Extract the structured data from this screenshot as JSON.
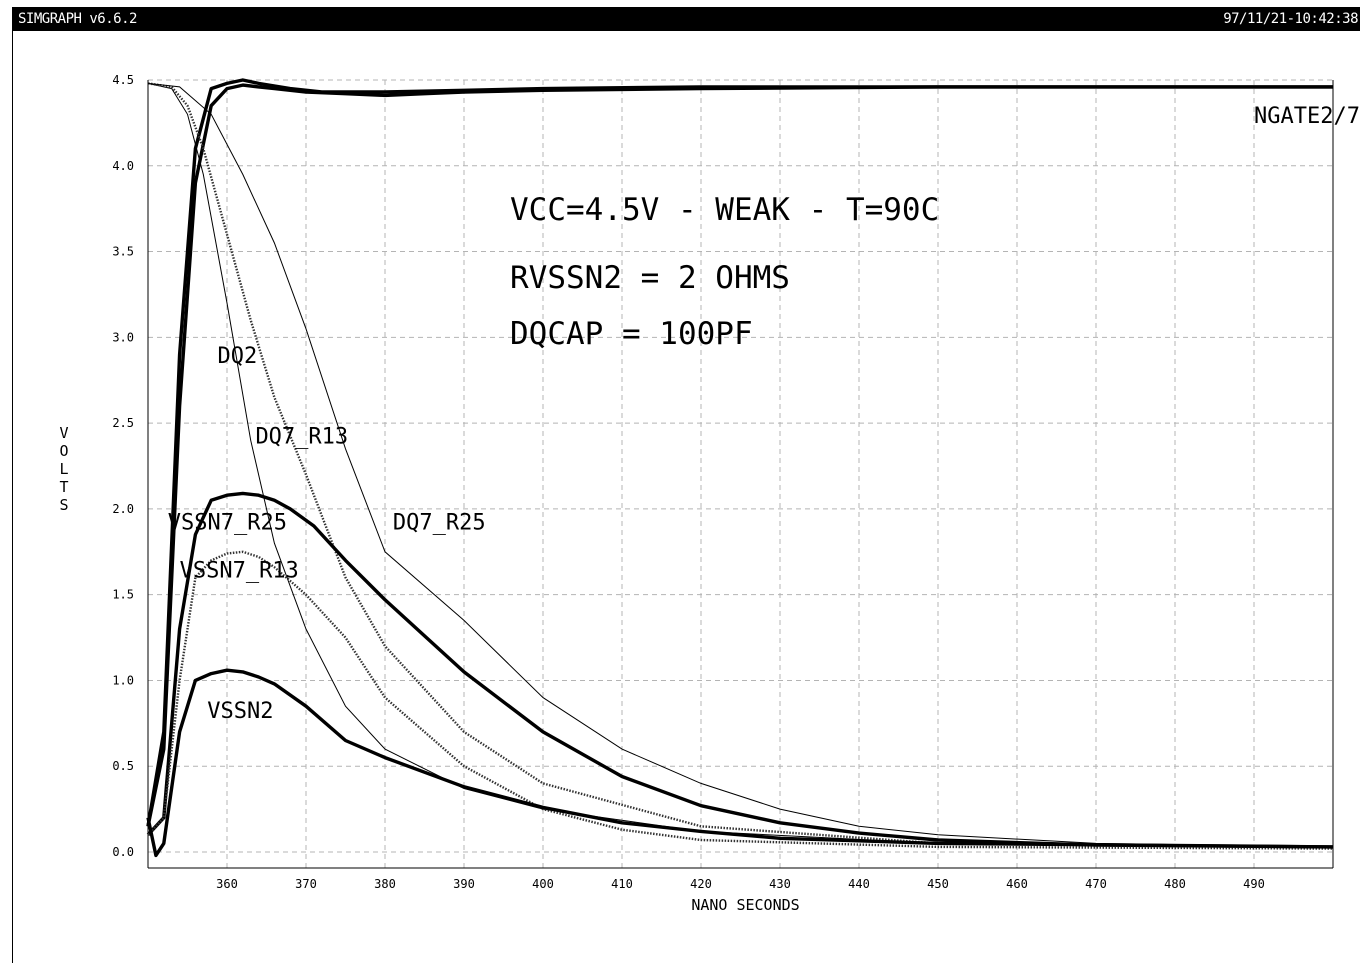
{
  "window": {
    "title": "SIMGRAPH v6.6.2",
    "timestamp": "97/11/21-10:42:38"
  },
  "chart_data": {
    "type": "line",
    "title": "",
    "xlabel": "NANO SECONDS",
    "ylabel": "VOLTS",
    "xlim": [
      350,
      500
    ],
    "ylim": [
      -0.05,
      4.5
    ],
    "xticks": [
      360,
      370,
      380,
      390,
      400,
      410,
      420,
      430,
      440,
      450,
      460,
      470,
      480,
      490
    ],
    "yticks": [
      0.0,
      0.5,
      1.0,
      1.5,
      2.0,
      2.5,
      3.0,
      3.5,
      4.0,
      4.5
    ],
    "grid": true,
    "annotations": [
      "VCC=4.5V - WEAK - T=90C",
      "RVSSN2 = 2 OHMS",
      "DQCAP = 100PF"
    ],
    "series": [
      {
        "name": "NGATE2/7",
        "style": "thick",
        "x": [
          350,
          352,
          354,
          356,
          358,
          360,
          362,
          364,
          366,
          370,
          375,
          380,
          385,
          390,
          400,
          420,
          450,
          480,
          500
        ],
        "y": [
          0.15,
          0.6,
          2.6,
          3.9,
          4.35,
          4.45,
          4.47,
          4.46,
          4.45,
          4.43,
          4.42,
          4.41,
          4.42,
          4.43,
          4.44,
          4.45,
          4.46,
          4.46,
          4.46
        ],
        "label_x": 490,
        "label_y": 4.25
      },
      {
        "name": "NGATE2/7",
        "style": "thick",
        "x": [
          350,
          352,
          354,
          356,
          358,
          360,
          362,
          364,
          368,
          372,
          380,
          390,
          400,
          420,
          450,
          480,
          500
        ],
        "y": [
          0.15,
          0.7,
          2.9,
          4.1,
          4.45,
          4.48,
          4.5,
          4.48,
          4.45,
          4.43,
          4.43,
          4.44,
          4.45,
          4.46,
          4.46,
          4.46,
          4.46
        ]
      },
      {
        "name": "DQ2",
        "style": "thin",
        "x": [
          350,
          353,
          355,
          357,
          360,
          363,
          366,
          370,
          375,
          380,
          390,
          400,
          420,
          450,
          500
        ],
        "y": [
          4.48,
          4.45,
          4.3,
          3.95,
          3.2,
          2.4,
          1.8,
          1.3,
          0.85,
          0.6,
          0.37,
          0.25,
          0.12,
          0.05,
          0.03
        ],
        "label_x": 358.8,
        "label_y": 2.85
      },
      {
        "name": "DQ7_R13",
        "style": "dotted",
        "x": [
          350,
          353,
          355,
          357,
          360,
          363,
          366,
          370,
          375,
          380,
          390,
          400,
          420,
          450,
          500
        ],
        "y": [
          4.48,
          4.46,
          4.35,
          4.1,
          3.6,
          3.1,
          2.65,
          2.2,
          1.6,
          1.2,
          0.7,
          0.4,
          0.15,
          0.05,
          0.03
        ],
        "label_x": 363.6,
        "label_y": 2.38
      },
      {
        "name": "DQ7_R25",
        "style": "thin",
        "x": [
          350,
          354,
          358,
          362,
          366,
          370,
          375,
          380,
          390,
          400,
          410,
          420,
          430,
          440,
          450,
          470,
          500
        ],
        "y": [
          4.48,
          4.46,
          4.3,
          3.95,
          3.55,
          3.05,
          2.35,
          1.75,
          1.35,
          0.9,
          0.6,
          0.4,
          0.25,
          0.15,
          0.1,
          0.05,
          0.03
        ],
        "label_x": 381,
        "label_y": 1.88
      },
      {
        "name": "VSSN7_R25",
        "style": "thick",
        "x": [
          350,
          352,
          354,
          356,
          358,
          360,
          362,
          364,
          366,
          368,
          371,
          375,
          380,
          390,
          400,
          410,
          420,
          430,
          440,
          450,
          470,
          500
        ],
        "y": [
          0.1,
          0.2,
          1.3,
          1.85,
          2.05,
          2.08,
          2.09,
          2.08,
          2.05,
          2.0,
          1.9,
          1.7,
          1.47,
          1.05,
          0.7,
          0.44,
          0.27,
          0.17,
          0.11,
          0.07,
          0.04,
          0.03
        ],
        "label_x": 352.5,
        "label_y": 1.88
      },
      {
        "name": "VSSN7_R13",
        "style": "dotted",
        "x": [
          350,
          352,
          354,
          356,
          358,
          360,
          362,
          364,
          366,
          370,
          375,
          380,
          390,
          400,
          410,
          420,
          450,
          500
        ],
        "y": [
          0.1,
          0.2,
          1.0,
          1.6,
          1.7,
          1.74,
          1.75,
          1.72,
          1.66,
          1.5,
          1.25,
          0.9,
          0.5,
          0.25,
          0.13,
          0.07,
          0.03,
          0.02
        ],
        "label_x": 354,
        "label_y": 1.6
      },
      {
        "name": "VSSN2",
        "style": "thick",
        "x": [
          350,
          351,
          352,
          354,
          356,
          358,
          360,
          362,
          364,
          366,
          370,
          375,
          380,
          390,
          400,
          410,
          420,
          430,
          450,
          500
        ],
        "y": [
          0.2,
          -0.02,
          0.05,
          0.7,
          1.0,
          1.04,
          1.06,
          1.05,
          1.02,
          0.98,
          0.85,
          0.65,
          0.55,
          0.38,
          0.26,
          0.17,
          0.12,
          0.08,
          0.05,
          0.03
        ],
        "label_x": 357.5,
        "label_y": 0.78
      }
    ]
  }
}
